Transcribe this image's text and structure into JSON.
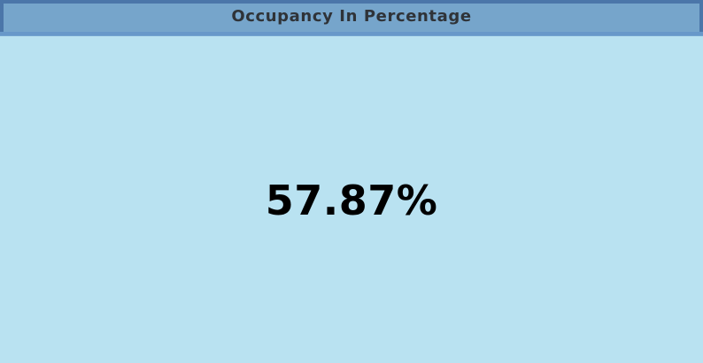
{
  "widget": {
    "title": "Occupancy In Percentage",
    "value": "57.87%"
  },
  "colors": {
    "background": "#b9e2f1",
    "header_background": "#76a5cb",
    "header_border": "#4b76a9",
    "title_text": "#2f3338",
    "value_text": "#000000"
  }
}
